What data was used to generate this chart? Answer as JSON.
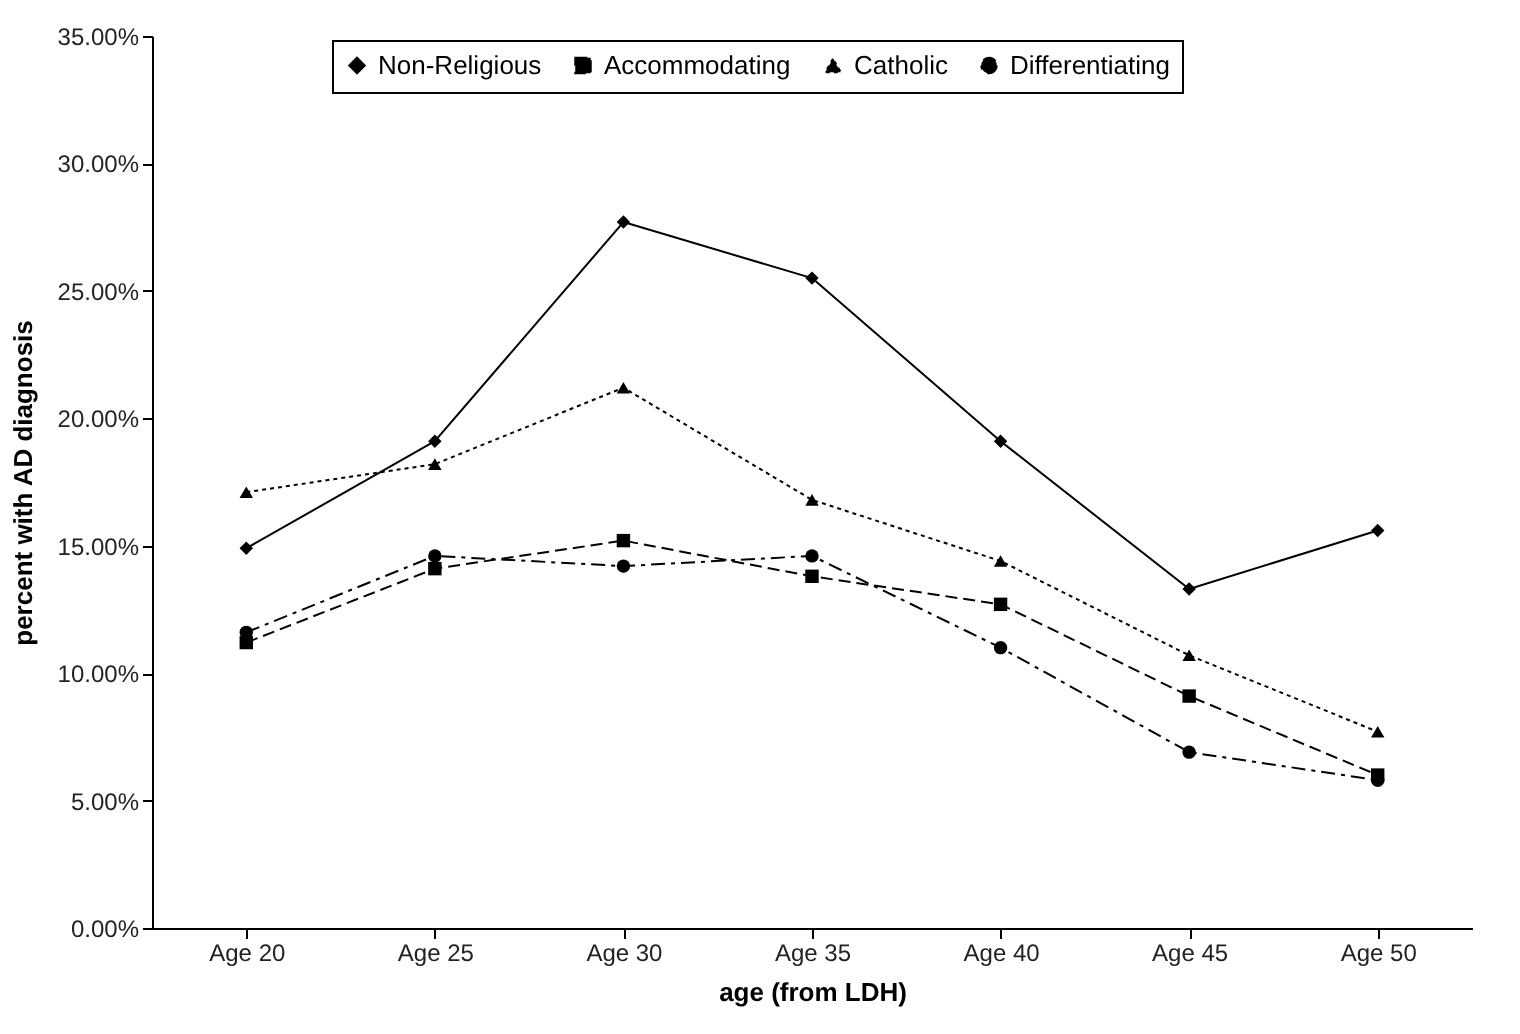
{
  "chart_data": {
    "type": "line",
    "xlabel": "age (from LDH)",
    "ylabel": "percent with AD diagnosis",
    "categories": [
      "Age 20",
      "Age 25",
      "Age 30",
      "Age 35",
      "Age 40",
      "Age 45",
      "Age 50"
    ],
    "series": [
      {
        "name": "Non-Religious",
        "color": "#000000",
        "marker": "diamond",
        "line_style": "solid",
        "values": [
          14.9,
          19.1,
          27.7,
          25.5,
          19.1,
          13.3,
          15.6
        ]
      },
      {
        "name": "Accommodating",
        "color": "#000000",
        "marker": "square",
        "line_style": "dashed",
        "values": [
          11.2,
          14.1,
          15.2,
          13.8,
          12.7,
          9.1,
          6.0
        ]
      },
      {
        "name": "Catholic",
        "color": "#000000",
        "marker": "triangle",
        "line_style": "dotted",
        "values": [
          17.1,
          18.2,
          21.2,
          16.8,
          14.4,
          10.7,
          7.7
        ]
      },
      {
        "name": "Differentiating",
        "color": "#000000",
        "marker": "circle",
        "line_style": "dashdot",
        "values": [
          11.6,
          14.6,
          14.2,
          14.6,
          11.0,
          6.9,
          5.8
        ]
      }
    ],
    "ylim": [
      0,
      35
    ],
    "yticks": [
      {
        "value": 0,
        "label": "0.00%"
      },
      {
        "value": 5,
        "label": "5.00%"
      },
      {
        "value": 10,
        "label": "10.00%"
      },
      {
        "value": 15,
        "label": "15.00%"
      },
      {
        "value": 20,
        "label": "20.00%"
      },
      {
        "value": 25,
        "label": "25.00%"
      },
      {
        "value": 30,
        "label": "30.00%"
      },
      {
        "value": 35,
        "label": "35.00%"
      }
    ],
    "grid": false,
    "legend": "top"
  }
}
